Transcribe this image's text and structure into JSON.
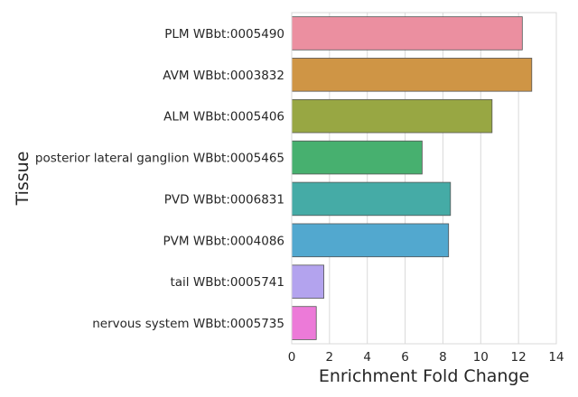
{
  "chart_data": {
    "type": "bar",
    "orientation": "horizontal",
    "title": "",
    "xlabel": "Enrichment Fold Change",
    "ylabel": "Tissue",
    "xlim": [
      0,
      14
    ],
    "xticks": [
      "0",
      "2",
      "4",
      "6",
      "8",
      "10",
      "12",
      "14"
    ],
    "grid": true,
    "categories": [
      "PLM WBbt:0005490",
      "AVM WBbt:0003832",
      "ALM WBbt:0005406",
      "posterior lateral ganglion WBbt:0005465",
      "PVD WBbt:0006831",
      "PVM WBbt:0004086",
      "tail WBbt:0005741",
      "nervous system WBbt:0005735"
    ],
    "values": [
      12.2,
      12.7,
      10.6,
      6.9,
      8.4,
      8.3,
      1.7,
      1.3
    ],
    "colors": [
      "#eb8fa0",
      "#cf9545",
      "#98a743",
      "#47b06f",
      "#45aba6",
      "#52a8cf",
      "#b3a3ee",
      "#ec7ad8"
    ]
  }
}
